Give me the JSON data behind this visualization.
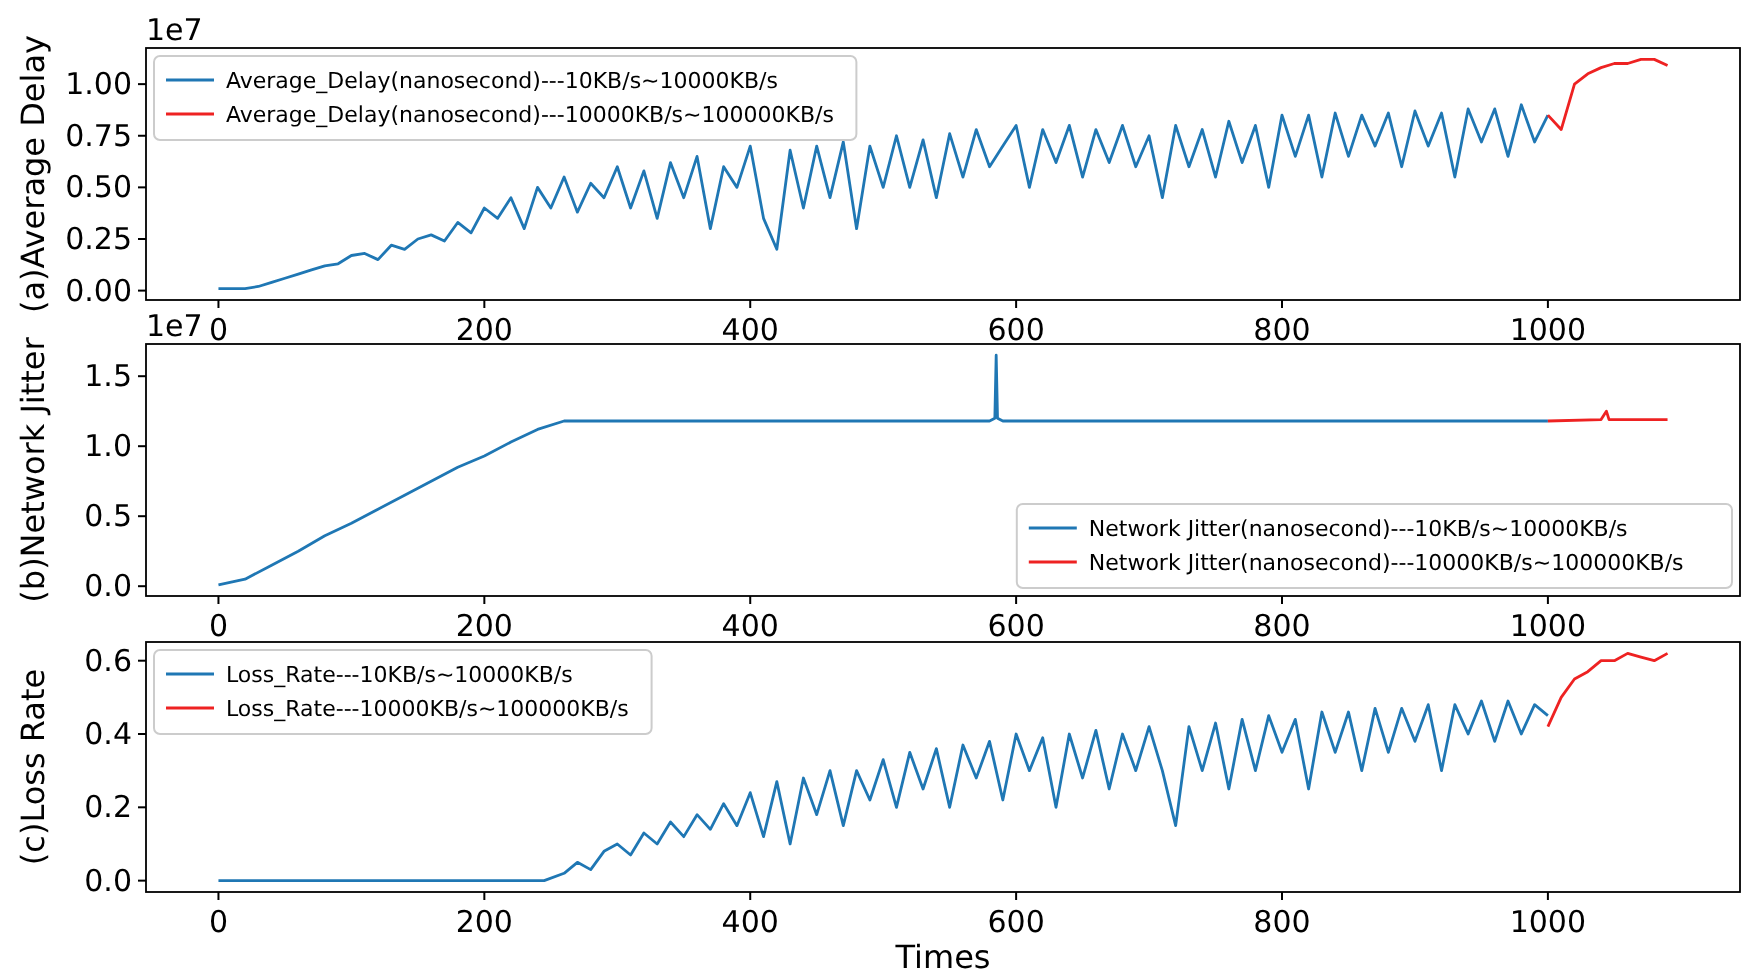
{
  "chart_data": [
    {
      "type": "line",
      "ylabel": "(a)Average Delay",
      "annotations": [
        "1e7"
      ],
      "xlim": [
        -54.5,
        1144.5
      ],
      "xticks": [
        0,
        200,
        400,
        600,
        800,
        1000
      ],
      "ylim": [
        -0.0455,
        1.175
      ],
      "yticks": [
        {
          "value": 0,
          "label": "0.00"
        },
        {
          "value": 0.25,
          "label": "0.25"
        },
        {
          "value": 0.5,
          "label": "0.50"
        },
        {
          "value": 0.75,
          "label": "0.75"
        },
        {
          "value": 1,
          "label": "1.00"
        }
      ],
      "legend": "top left",
      "grid": false,
      "series": [
        {
          "name": "Average_Delay(nanosecond)---10KB/s~10000KB/s",
          "color": "#1f77b4",
          "x": [
            0,
            10,
            20,
            30,
            40,
            50,
            60,
            70,
            80,
            90,
            100,
            110,
            120,
            130,
            140,
            150,
            160,
            170,
            180,
            190,
            200,
            210,
            220,
            230,
            240,
            250,
            260,
            270,
            280,
            290,
            300,
            310,
            320,
            330,
            340,
            350,
            360,
            370,
            380,
            390,
            400,
            410,
            420,
            430,
            440,
            450,
            460,
            470,
            480,
            490,
            500,
            510,
            520,
            530,
            540,
            550,
            560,
            570,
            580,
            590,
            600,
            610,
            620,
            630,
            640,
            650,
            660,
            670,
            680,
            690,
            700,
            710,
            720,
            730,
            740,
            750,
            760,
            770,
            780,
            790,
            800,
            810,
            820,
            830,
            840,
            850,
            860,
            870,
            880,
            890,
            900,
            910,
            920,
            930,
            940,
            950,
            960,
            970,
            980,
            990,
            1000
          ],
          "values": [
            0.01,
            0.01,
            0.01,
            0.02,
            0.04,
            0.06,
            0.08,
            0.1,
            0.12,
            0.13,
            0.17,
            0.18,
            0.15,
            0.22,
            0.2,
            0.25,
            0.27,
            0.24,
            0.33,
            0.28,
            0.4,
            0.35,
            0.45,
            0.3,
            0.5,
            0.4,
            0.55,
            0.38,
            0.52,
            0.45,
            0.6,
            0.4,
            0.58,
            0.35,
            0.62,
            0.45,
            0.65,
            0.3,
            0.6,
            0.5,
            0.7,
            0.35,
            0.2,
            0.68,
            0.4,
            0.7,
            0.45,
            0.72,
            0.3,
            0.7,
            0.5,
            0.75,
            0.5,
            0.73,
            0.45,
            0.76,
            0.55,
            0.78,
            0.6,
            0.7,
            0.8,
            0.5,
            0.78,
            0.62,
            0.8,
            0.55,
            0.78,
            0.62,
            0.8,
            0.6,
            0.75,
            0.45,
            0.8,
            0.6,
            0.78,
            0.55,
            0.82,
            0.62,
            0.8,
            0.5,
            0.85,
            0.65,
            0.85,
            0.55,
            0.86,
            0.65,
            0.85,
            0.7,
            0.86,
            0.6,
            0.87,
            0.7,
            0.86,
            0.55,
            0.88,
            0.72,
            0.88,
            0.65,
            0.9,
            0.72,
            0.85
          ]
        },
        {
          "name": "Average_Delay(nanosecond)---10000KB/s~100000KB/s",
          "color": "#ee2222",
          "x": [
            1000,
            1010,
            1020,
            1030,
            1040,
            1050,
            1060,
            1070,
            1080,
            1090
          ],
          "values": [
            0.85,
            0.78,
            1.0,
            1.05,
            1.08,
            1.1,
            1.1,
            1.12,
            1.12,
            1.09
          ]
        }
      ]
    },
    {
      "type": "line",
      "ylabel": "(b)Network Jitter",
      "annotations": [
        "1e7"
      ],
      "xlim": [
        -54.5,
        1144.5
      ],
      "xticks": [
        0,
        200,
        400,
        600,
        800,
        1000
      ],
      "ylim": [
        -0.07,
        1.73
      ],
      "yticks": [
        {
          "value": 0,
          "label": "0.0"
        },
        0.5,
        {
          "value": 1,
          "label": "1.0"
        },
        1.5
      ],
      "legend": "bottom right",
      "grid": false,
      "series": [
        {
          "name": "Network Jitter(nanosecond)---10KB/s~10000KB/s",
          "color": "#1f77b4",
          "x": [
            0,
            20,
            40,
            60,
            80,
            100,
            120,
            140,
            160,
            180,
            200,
            220,
            240,
            260,
            300,
            400,
            500,
            580,
            584,
            585,
            586,
            590,
            700,
            800,
            900,
            1000
          ],
          "values": [
            0.01,
            0.05,
            0.15,
            0.25,
            0.36,
            0.45,
            0.55,
            0.65,
            0.75,
            0.85,
            0.93,
            1.03,
            1.12,
            1.18,
            1.18,
            1.18,
            1.18,
            1.18,
            1.2,
            1.65,
            1.2,
            1.18,
            1.18,
            1.18,
            1.18,
            1.18
          ]
        },
        {
          "name": "Network Jitter(nanosecond)---10000KB/s~100000KB/s",
          "color": "#ee2222",
          "x": [
            1000,
            1040,
            1044,
            1046,
            1090
          ],
          "values": [
            1.18,
            1.19,
            1.25,
            1.19,
            1.19
          ]
        }
      ]
    },
    {
      "type": "line",
      "ylabel": "(c)Loss Rate",
      "xlabel": "Times",
      "xlim": [
        -54.5,
        1144.5
      ],
      "xticks": [
        0,
        200,
        400,
        600,
        800,
        1000
      ],
      "ylim": [
        -0.031,
        0.651
      ],
      "yticks": [
        {
          "value": 0,
          "label": "0.0"
        },
        0.2,
        0.4,
        0.6
      ],
      "legend": "top left",
      "grid": false,
      "series": [
        {
          "name": "Loss_Rate---10KB/s~10000KB/s",
          "color": "#1f77b4",
          "x": [
            0,
            100,
            200,
            245,
            260,
            270,
            280,
            290,
            300,
            310,
            320,
            330,
            340,
            350,
            360,
            370,
            380,
            390,
            400,
            410,
            420,
            430,
            440,
            450,
            460,
            470,
            480,
            490,
            500,
            510,
            520,
            530,
            540,
            550,
            560,
            570,
            580,
            590,
            600,
            610,
            620,
            630,
            640,
            650,
            660,
            670,
            680,
            690,
            700,
            710,
            720,
            730,
            740,
            750,
            760,
            770,
            780,
            790,
            800,
            810,
            820,
            830,
            840,
            850,
            860,
            870,
            880,
            890,
            900,
            910,
            920,
            930,
            940,
            950,
            960,
            970,
            980,
            990,
            1000
          ],
          "values": [
            0,
            0,
            0,
            0,
            0.02,
            0.05,
            0.03,
            0.08,
            0.1,
            0.07,
            0.13,
            0.1,
            0.16,
            0.12,
            0.18,
            0.14,
            0.21,
            0.15,
            0.24,
            0.12,
            0.27,
            0.1,
            0.28,
            0.18,
            0.3,
            0.15,
            0.3,
            0.22,
            0.33,
            0.2,
            0.35,
            0.25,
            0.36,
            0.2,
            0.37,
            0.28,
            0.38,
            0.22,
            0.4,
            0.3,
            0.39,
            0.2,
            0.4,
            0.28,
            0.41,
            0.25,
            0.4,
            0.3,
            0.42,
            0.3,
            0.15,
            0.42,
            0.3,
            0.43,
            0.25,
            0.44,
            0.3,
            0.45,
            0.35,
            0.44,
            0.25,
            0.46,
            0.35,
            0.46,
            0.3,
            0.47,
            0.35,
            0.47,
            0.38,
            0.48,
            0.3,
            0.48,
            0.4,
            0.49,
            0.38,
            0.49,
            0.4,
            0.48,
            0.45
          ]
        },
        {
          "name": "Loss_Rate---10000KB/s~100000KB/s",
          "color": "#ee2222",
          "x": [
            1000,
            1010,
            1020,
            1030,
            1040,
            1050,
            1060,
            1070,
            1080,
            1090
          ],
          "values": [
            0.42,
            0.5,
            0.55,
            0.57,
            0.6,
            0.6,
            0.62,
            0.61,
            0.6,
            0.62
          ]
        }
      ]
    }
  ]
}
